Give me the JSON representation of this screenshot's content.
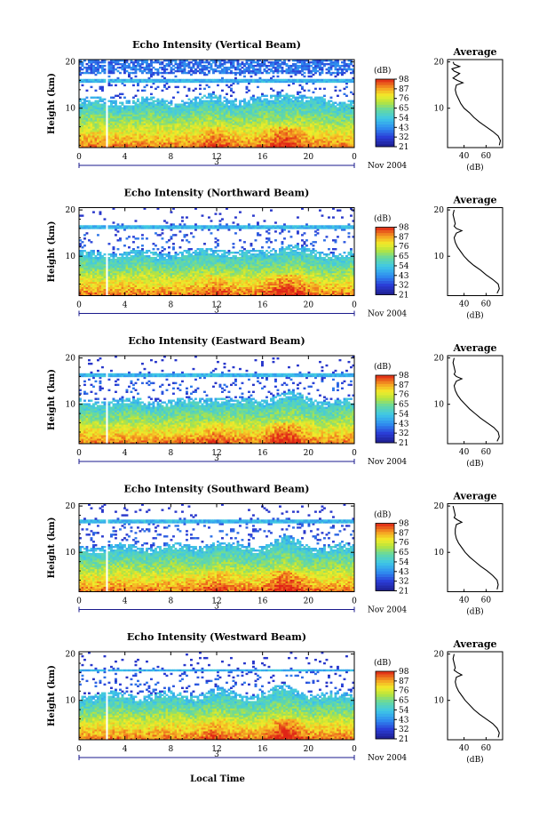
{
  "figure": {
    "x_axis_title": "Local Time",
    "date_marker": "3",
    "month_year_label": "Nov 2004"
  },
  "chart_data": [
    {
      "type": "heatmap",
      "title": "Echo Intensity (Vertical Beam)",
      "ylabel": "Height (km)",
      "xlabel": "Local Time",
      "xlim": [
        0,
        24
      ],
      "ylim": [
        1.5,
        20.5
      ],
      "xticks": [
        "0",
        "4",
        "8",
        "12",
        "16",
        "20",
        "0"
      ],
      "yticks": [
        "10",
        "20"
      ],
      "colorbar": {
        "unit": "(dB)",
        "ticks": [
          "21",
          "32",
          "43",
          "54",
          "65",
          "76",
          "87",
          "98"
        ],
        "range": [
          21,
          98
        ]
      },
      "gap_hour": 2.4,
      "tropopause_km": 16,
      "lower_cloud_top_km": 12,
      "inner_top_km": 17.5,
      "average_profile": {
        "title": "Average",
        "xlabel": "(dB)",
        "xticks": [
          "40",
          "60"
        ],
        "xlim": [
          25,
          75
        ],
        "ylim": [
          1.5,
          20.5
        ],
        "heights": [
          2,
          3,
          4,
          5,
          6,
          7,
          8,
          9,
          10,
          11,
          12,
          13,
          14,
          15,
          15.5,
          16,
          16.5,
          17,
          17.5,
          18,
          18.5,
          19,
          19.5,
          20
        ],
        "values": [
          72,
          73,
          71,
          66,
          60,
          54,
          49,
          45,
          40,
          37,
          35,
          33,
          32,
          33,
          39,
          34,
          30,
          33,
          36,
          31,
          29,
          36,
          31,
          30
        ]
      }
    },
    {
      "type": "heatmap",
      "title": "Echo Intensity (Northward Beam)",
      "ylabel": "Height (km)",
      "xlabel": "Local Time",
      "xlim": [
        0,
        24
      ],
      "ylim": [
        1.5,
        20.5
      ],
      "xticks": [
        "0",
        "4",
        "8",
        "12",
        "16",
        "20",
        "0"
      ],
      "yticks": [
        "10",
        "20"
      ],
      "colorbar": {
        "unit": "(dB)",
        "ticks": [
          "21",
          "32",
          "43",
          "54",
          "65",
          "76",
          "87",
          "98"
        ],
        "range": [
          21,
          98
        ]
      },
      "gap_hour": 2.4,
      "tropopause_km": 16.2,
      "lower_cloud_top_km": 11,
      "inner_top_km": 17,
      "average_profile": {
        "title": "Average",
        "xlabel": "(dB)",
        "xticks": [
          "40",
          "60"
        ],
        "xlim": [
          25,
          75
        ],
        "ylim": [
          1.5,
          20.5
        ],
        "heights": [
          2,
          3,
          4,
          5,
          6,
          7,
          8,
          9,
          10,
          11,
          12,
          13,
          14,
          15,
          15.5,
          16,
          16.5,
          17,
          18,
          19,
          20
        ],
        "values": [
          70,
          72,
          71,
          66,
          60,
          55,
          49,
          44,
          40,
          37,
          34,
          32,
          31,
          33,
          38,
          33,
          31,
          32,
          31,
          30,
          31
        ]
      }
    },
    {
      "type": "heatmap",
      "title": "Echo Intensity (Eastward Beam)",
      "ylabel": "Height (km)",
      "xlabel": "Local Time",
      "xlim": [
        0,
        24
      ],
      "ylim": [
        1.5,
        20.5
      ],
      "xticks": [
        "0",
        "4",
        "8",
        "12",
        "16",
        "20",
        "0"
      ],
      "yticks": [
        "10",
        "20"
      ],
      "colorbar": {
        "unit": "(dB)",
        "ticks": [
          "21",
          "32",
          "43",
          "54",
          "65",
          "76",
          "87",
          "98"
        ],
        "range": [
          21,
          98
        ]
      },
      "gap_hour": 2.4,
      "tropopause_km": 16.2,
      "lower_cloud_top_km": 11,
      "inner_top_km": 17,
      "average_profile": {
        "title": "Average",
        "xlabel": "(dB)",
        "xticks": [
          "40",
          "60"
        ],
        "xlim": [
          25,
          75
        ],
        "ylim": [
          1.5,
          20.5
        ],
        "heights": [
          2,
          3,
          4,
          5,
          6,
          7,
          8,
          9,
          10,
          11,
          12,
          13,
          14,
          15,
          15.5,
          16,
          16.5,
          17,
          18,
          19,
          20
        ],
        "values": [
          70,
          72,
          71,
          67,
          61,
          55,
          50,
          45,
          41,
          37,
          34,
          32,
          31,
          33,
          38,
          33,
          31,
          32,
          31,
          30,
          31
        ]
      }
    },
    {
      "type": "heatmap",
      "title": "Echo Intensity (Southward Beam)",
      "ylabel": "Height (km)",
      "xlabel": "Local Time",
      "xlim": [
        0,
        24
      ],
      "ylim": [
        1.5,
        20.5
      ],
      "xticks": [
        "0",
        "4",
        "8",
        "12",
        "16",
        "20",
        "0"
      ],
      "yticks": [
        "10",
        "20"
      ],
      "colorbar": {
        "unit": "(dB)",
        "ticks": [
          "21",
          "32",
          "43",
          "54",
          "65",
          "76",
          "87",
          "98"
        ],
        "range": [
          21,
          98
        ]
      },
      "gap_hour": 2.4,
      "tropopause_km": 16.8,
      "lower_cloud_top_km": 11.5,
      "inner_top_km": 17.5,
      "average_profile": {
        "title": "Average",
        "xlabel": "(dB)",
        "xticks": [
          "40",
          "60"
        ],
        "xlim": [
          25,
          75
        ],
        "ylim": [
          1.5,
          20.5
        ],
        "heights": [
          2,
          3,
          4,
          5,
          6,
          7,
          8,
          9,
          10,
          11,
          12,
          13,
          14,
          15,
          16,
          16.5,
          17,
          17.5,
          18,
          19,
          20
        ],
        "values": [
          70,
          71,
          70,
          66,
          61,
          55,
          50,
          45,
          41,
          38,
          35,
          33,
          32,
          32,
          33,
          38,
          34,
          31,
          32,
          31,
          30
        ]
      }
    },
    {
      "type": "heatmap",
      "title": "Echo Intensity (Westward Beam)",
      "ylabel": "Height (km)",
      "xlabel": "Local Time",
      "xlim": [
        0,
        24
      ],
      "ylim": [
        1.5,
        20.5
      ],
      "xticks": [
        "0",
        "4",
        "8",
        "12",
        "16",
        "20",
        "0"
      ],
      "yticks": [
        "10",
        "20"
      ],
      "colorbar": {
        "unit": "(dB)",
        "ticks": [
          "21",
          "32",
          "43",
          "54",
          "65",
          "76",
          "87",
          "98"
        ],
        "range": [
          21,
          98
        ]
      },
      "gap_hour": 2.4,
      "tropopause_km": 16.5,
      "lower_cloud_top_km": 11.5,
      "inner_top_km": 17,
      "average_profile": {
        "title": "Average",
        "xlabel": "(dB)",
        "xticks": [
          "40",
          "60"
        ],
        "xlim": [
          25,
          75
        ],
        "ylim": [
          1.5,
          20.5
        ],
        "heights": [
          2,
          3,
          4,
          5,
          6,
          7,
          8,
          9,
          10,
          11,
          12,
          13,
          14,
          15,
          15.5,
          16,
          16.5,
          17,
          18,
          19,
          20
        ],
        "values": [
          71,
          72,
          70,
          66,
          60,
          54,
          49,
          45,
          41,
          38,
          35,
          33,
          32,
          33,
          38,
          34,
          31,
          32,
          31,
          30,
          31
        ]
      }
    }
  ]
}
